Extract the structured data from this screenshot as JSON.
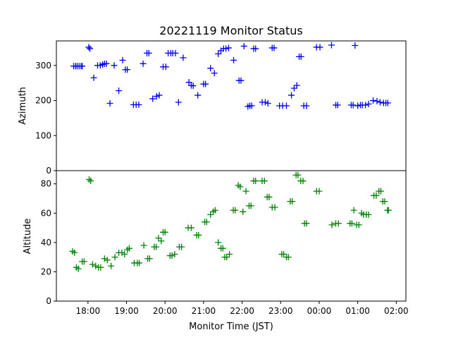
{
  "chart_data": {
    "type": "scatter",
    "title": "20221119 Monitor Status",
    "xlabel": "Monitor Time (JST)",
    "x_tick_labels": [
      "18:00",
      "19:00",
      "20:00",
      "21:00",
      "22:00",
      "23:00",
      "00:00",
      "01:00",
      "02:00"
    ],
    "x_ticks_hours": [
      18,
      19,
      20,
      21,
      22,
      23,
      24,
      25,
      26
    ],
    "xlim_hours": [
      17.18,
      26.25
    ],
    "marker": "+",
    "panels": [
      {
        "ylabel": "Azimuth",
        "ylim": [
          0,
          370
        ],
        "y_ticks": [
          0,
          100,
          200,
          300
        ],
        "color": "#0000ff",
        "points": [
          [
            17.63,
            298
          ],
          [
            17.68,
            298
          ],
          [
            17.72,
            298
          ],
          [
            17.77,
            298
          ],
          [
            17.82,
            298
          ],
          [
            17.85,
            298
          ],
          [
            18.02,
            352
          ],
          [
            18.05,
            348
          ],
          [
            18.15,
            265
          ],
          [
            18.25,
            300
          ],
          [
            18.32,
            300
          ],
          [
            18.38,
            303
          ],
          [
            18.43,
            305
          ],
          [
            18.48,
            305
          ],
          [
            18.57,
            192
          ],
          [
            18.68,
            300
          ],
          [
            18.8,
            228
          ],
          [
            18.9,
            315
          ],
          [
            18.97,
            288
          ],
          [
            19.02,
            288
          ],
          [
            19.18,
            188
          ],
          [
            19.25,
            188
          ],
          [
            19.32,
            188
          ],
          [
            19.43,
            305
          ],
          [
            19.53,
            335
          ],
          [
            19.58,
            335
          ],
          [
            19.68,
            205
          ],
          [
            19.78,
            212
          ],
          [
            19.85,
            215
          ],
          [
            19.95,
            296
          ],
          [
            20.02,
            296
          ],
          [
            20.08,
            335
          ],
          [
            20.15,
            335
          ],
          [
            20.2,
            335
          ],
          [
            20.27,
            335
          ],
          [
            20.35,
            195
          ],
          [
            20.47,
            322
          ],
          [
            20.62,
            252
          ],
          [
            20.68,
            243
          ],
          [
            20.73,
            242
          ],
          [
            20.85,
            215
          ],
          [
            21,
            247
          ],
          [
            21.05,
            247
          ],
          [
            21.18,
            292
          ],
          [
            21.28,
            278
          ],
          [
            21.38,
            333
          ],
          [
            21.45,
            342
          ],
          [
            21.52,
            348
          ],
          [
            21.58,
            348
          ],
          [
            21.65,
            350
          ],
          [
            21.78,
            315
          ],
          [
            21.92,
            257
          ],
          [
            21.97,
            257
          ],
          [
            22.05,
            355
          ],
          [
            22.15,
            183
          ],
          [
            22.2,
            185
          ],
          [
            22.25,
            185
          ],
          [
            22.3,
            348
          ],
          [
            22.35,
            348
          ],
          [
            22.52,
            195
          ],
          [
            22.6,
            195
          ],
          [
            22.67,
            192
          ],
          [
            22.78,
            350
          ],
          [
            22.83,
            350
          ],
          [
            22.97,
            185
          ],
          [
            23.05,
            185
          ],
          [
            23.15,
            185
          ],
          [
            23.28,
            215
          ],
          [
            23.35,
            235
          ],
          [
            23.42,
            243
          ],
          [
            23.48,
            325
          ],
          [
            23.53,
            325
          ],
          [
            23.6,
            185
          ],
          [
            23.67,
            185
          ],
          [
            23.93,
            352
          ],
          [
            24.02,
            352
          ],
          [
            24.32,
            358
          ],
          [
            24.43,
            187
          ],
          [
            24.48,
            187
          ],
          [
            24.83,
            187
          ],
          [
            24.88,
            187
          ],
          [
            24.93,
            357
          ],
          [
            25.0,
            185
          ],
          [
            25.07,
            187
          ],
          [
            25.12,
            187
          ],
          [
            25.2,
            187
          ],
          [
            25.28,
            190
          ],
          [
            25.4,
            200
          ],
          [
            25.5,
            198
          ],
          [
            25.58,
            195
          ],
          [
            25.67,
            193
          ],
          [
            25.73,
            193
          ],
          [
            25.78,
            193
          ]
        ]
      },
      {
        "ylabel": "Altitude",
        "ylim": [
          0,
          89
        ],
        "y_ticks": [
          0,
          20,
          40,
          60,
          80
        ],
        "color": "#008000",
        "points": [
          [
            17.6,
            34
          ],
          [
            17.65,
            33
          ],
          [
            17.7,
            23
          ],
          [
            17.75,
            22
          ],
          [
            17.85,
            27
          ],
          [
            17.9,
            27
          ],
          [
            18.03,
            83
          ],
          [
            18.07,
            82
          ],
          [
            18.12,
            25
          ],
          [
            18.2,
            24
          ],
          [
            18.27,
            23
          ],
          [
            18.33,
            23
          ],
          [
            18.43,
            29
          ],
          [
            18.5,
            28
          ],
          [
            18.6,
            24
          ],
          [
            18.7,
            30
          ],
          [
            18.8,
            33
          ],
          [
            18.88,
            33
          ],
          [
            18.95,
            32
          ],
          [
            19.02,
            35
          ],
          [
            19.07,
            36
          ],
          [
            19.2,
            26
          ],
          [
            19.28,
            26
          ],
          [
            19.33,
            26
          ],
          [
            19.45,
            38
          ],
          [
            19.55,
            29
          ],
          [
            19.6,
            29
          ],
          [
            19.72,
            37
          ],
          [
            19.77,
            37
          ],
          [
            19.83,
            43
          ],
          [
            19.9,
            41
          ],
          [
            19.95,
            47
          ],
          [
            20.0,
            47
          ],
          [
            20.13,
            31
          ],
          [
            20.18,
            31
          ],
          [
            20.25,
            32
          ],
          [
            20.37,
            37
          ],
          [
            20.43,
            37
          ],
          [
            20.6,
            50
          ],
          [
            20.68,
            50
          ],
          [
            20.82,
            45
          ],
          [
            20.87,
            45
          ],
          [
            21.03,
            54
          ],
          [
            21.08,
            54
          ],
          [
            21.18,
            59
          ],
          [
            21.25,
            61
          ],
          [
            21.3,
            62
          ],
          [
            21.38,
            40
          ],
          [
            21.45,
            36
          ],
          [
            21.5,
            36
          ],
          [
            21.55,
            30
          ],
          [
            21.6,
            30
          ],
          [
            21.67,
            32
          ],
          [
            21.77,
            62
          ],
          [
            21.82,
            62
          ],
          [
            21.9,
            79
          ],
          [
            21.95,
            78
          ],
          [
            22.02,
            61
          ],
          [
            22.1,
            75
          ],
          [
            22.18,
            65
          ],
          [
            22.23,
            65
          ],
          [
            22.3,
            82
          ],
          [
            22.35,
            82
          ],
          [
            22.52,
            82
          ],
          [
            22.58,
            82
          ],
          [
            22.65,
            71
          ],
          [
            22.7,
            71
          ],
          [
            22.78,
            64
          ],
          [
            22.85,
            64
          ],
          [
            23.03,
            32
          ],
          [
            23.08,
            32
          ],
          [
            23.15,
            30
          ],
          [
            23.2,
            30
          ],
          [
            23.25,
            68
          ],
          [
            23.3,
            68
          ],
          [
            23.4,
            86
          ],
          [
            23.45,
            86
          ],
          [
            23.52,
            82
          ],
          [
            23.58,
            82
          ],
          [
            23.62,
            53
          ],
          [
            23.67,
            53
          ],
          [
            23.93,
            75
          ],
          [
            24.0,
            75
          ],
          [
            24.33,
            52
          ],
          [
            24.43,
            53
          ],
          [
            24.5,
            53
          ],
          [
            24.8,
            53
          ],
          [
            24.85,
            53
          ],
          [
            24.9,
            62
          ],
          [
            24.97,
            52
          ],
          [
            25.03,
            52
          ],
          [
            25.1,
            60
          ],
          [
            25.15,
            59
          ],
          [
            25.22,
            59
          ],
          [
            25.28,
            59
          ],
          [
            25.42,
            72
          ],
          [
            25.48,
            72
          ],
          [
            25.55,
            75
          ],
          [
            25.6,
            75
          ],
          [
            25.65,
            68
          ],
          [
            25.7,
            68
          ],
          [
            25.77,
            62
          ],
          [
            25.8,
            62
          ]
        ]
      }
    ]
  }
}
